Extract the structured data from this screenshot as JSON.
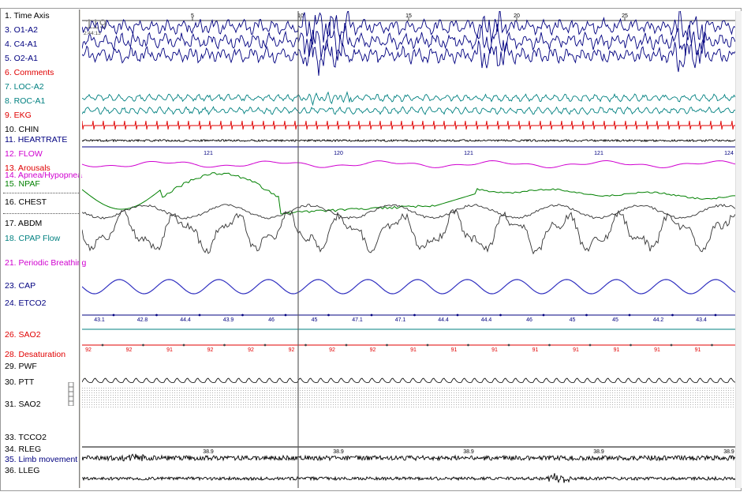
{
  "epoch": {
    "number": "119",
    "start_time": "2:44:13"
  },
  "time_axis": {
    "ticks": [
      "5",
      "10",
      "15",
      "20",
      "25"
    ]
  },
  "channels": [
    {
      "label": "1. Time Axis",
      "color": "#000000"
    },
    {
      "label": "3. O1-A2",
      "color": "#000080"
    },
    {
      "label": "4. C4-A1",
      "color": "#000080"
    },
    {
      "label": "5. O2-A1",
      "color": "#000080"
    },
    {
      "label": "6. Comments",
      "color": "#e00000"
    },
    {
      "label": "7. LOC-A2",
      "color": "#008080"
    },
    {
      "label": "8. ROC-A1",
      "color": "#008080"
    },
    {
      "label": "9. EKG",
      "color": "#e00000"
    },
    {
      "label": "10. CHIN",
      "color": "#000000"
    },
    {
      "label": "11. HEARTRATE",
      "color": "#000080"
    },
    {
      "label": "12. FLOW",
      "color": "#d000d0"
    },
    {
      "label": "13. Arousals",
      "color": "#e00000"
    },
    {
      "label": "14. Apnea/Hypopnea",
      "color": "#d000d0"
    },
    {
      "label": "15. NPAF",
      "color": "#008000"
    },
    {
      "label": "16. CHEST",
      "color": "#000000"
    },
    {
      "label": "17. ABDM",
      "color": "#000000"
    },
    {
      "label": "18. CPAP Flow",
      "color": "#008080"
    },
    {
      "label": "21. Periodic Breathing",
      "color": "#d000d0"
    },
    {
      "label": "23. CAP",
      "color": "#000080"
    },
    {
      "label": "24. ETCO2",
      "color": "#000080"
    },
    {
      "label": "26. SAO2",
      "color": "#e00000"
    },
    {
      "label": "28. Desaturation",
      "color": "#e00000"
    },
    {
      "label": "29. PWF",
      "color": "#000000"
    },
    {
      "label": "30. PTT",
      "color": "#000000"
    },
    {
      "label": "31. SAO2",
      "color": "#000000"
    },
    {
      "label": "33. TCCO2",
      "color": "#000000"
    },
    {
      "label": "34. RLEG",
      "color": "#000000"
    },
    {
      "label": "35. Limb movement",
      "color": "#000080"
    },
    {
      "label": "36. LLEG",
      "color": "#000000"
    }
  ],
  "heartrate_values": [
    "121",
    "120",
    "121",
    "121",
    "124"
  ],
  "etco2_values": [
    "43.1",
    "42.8",
    "44.4",
    "43.9",
    "46",
    "45",
    "47.1",
    "47.1",
    "44.4",
    "44.4",
    "46",
    "45",
    "45",
    "44.2",
    "43.4"
  ],
  "sao2_values": [
    "92",
    "92",
    "91",
    "92",
    "92",
    "92",
    "92",
    "92",
    "91",
    "91",
    "91",
    "91",
    "91",
    "91",
    "91",
    "91"
  ],
  "tcco2_values": [
    "38.9",
    "38.9",
    "38.9",
    "38.9",
    "38.9"
  ],
  "colors": {
    "eeg": "#000080",
    "eog": "#008080",
    "ekg": "#e00000",
    "flow": "#d000d0",
    "npaf": "#008000",
    "effort": "#333333",
    "cap": "#3030c0",
    "cursor": "#606060"
  }
}
